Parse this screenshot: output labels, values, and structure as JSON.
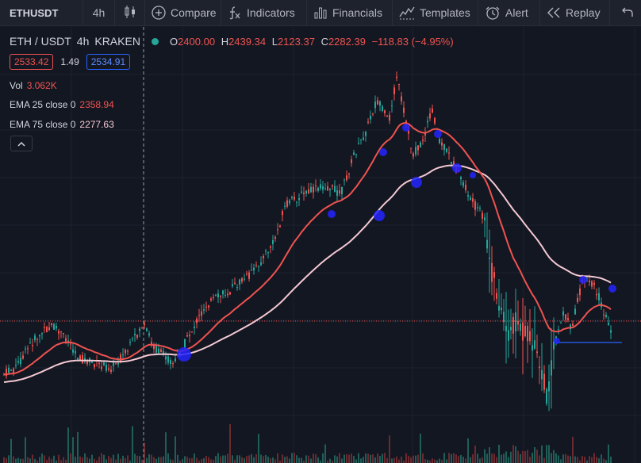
{
  "toolbar": {
    "symbol": "ETHUSDT",
    "interval": "4h",
    "compare": "Compare",
    "indicators": "Indicators",
    "financials": "Financials",
    "templates": "Templates",
    "alert": "Alert",
    "replay": "Replay"
  },
  "legend": {
    "symbol": "ETH / USDT",
    "interval": "4h",
    "exchange": "KRAKEN",
    "o_label": "O",
    "o": "2400.00",
    "h_label": "H",
    "h": "2439.34",
    "l_label": "L",
    "l": "2123.37",
    "c_label": "C",
    "c": "2282.39",
    "change": "−118.83 (−4.95%)"
  },
  "trade": {
    "sell": "2533.42",
    "spread": "1.49",
    "buy": "2534.91"
  },
  "indicators": {
    "vol_label": "Vol",
    "vol_value": "3.062K",
    "ema25_label": "EMA 25 close 0",
    "ema25_value": "2358.94",
    "ema75_label": "EMA 75 close 0",
    "ema75_value": "2277.63"
  },
  "colors": {
    "background": "#131722",
    "up": "#26a69a",
    "down": "#ef5350",
    "ema25": "#ef5350",
    "ema75": "#f5c9d3",
    "marker": "#2424ff"
  },
  "icons": {
    "chart_type": "candles-icon",
    "compare": "plus-circle-icon",
    "indicators": "fx-icon",
    "financials": "bar-chart-icon",
    "templates": "templates-icon",
    "alert": "alarm-clock-icon",
    "replay": "rewind-icon",
    "undo": "undo-icon",
    "collapse": "chevron-up-icon"
  }
}
